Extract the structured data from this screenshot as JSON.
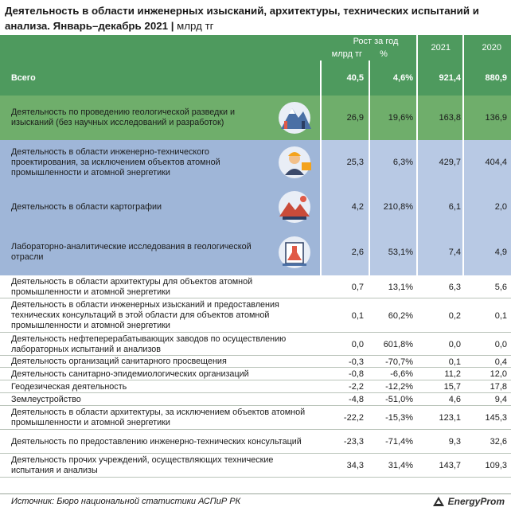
{
  "header": {
    "title": "Деятельность в области инженерных изысканий, архитектуры, технических испытаний и анализа. Январь–декабрь 2021",
    "unit": "млрд тг"
  },
  "columns": {
    "growth_group": "Рост за год",
    "growth_abs": "млрд тг",
    "growth_pct": "%",
    "y2021": "2021",
    "y2020": "2020"
  },
  "colors": {
    "header_bg": "#4e9a5e",
    "total_bg": "#4e9a5e",
    "featured_green": "#6fae6b",
    "featured_blue": "#9fb6d8",
    "featured_blue_light": "#b8c9e4"
  },
  "chart_data": {
    "type": "table",
    "columns": [
      "Рост за год, млрд тг",
      "Рост за год, %",
      "2021",
      "2020"
    ],
    "rows": [
      {
        "label": "Всего",
        "abs": "40,5",
        "pct": "4,6%",
        "y2021": "921,4",
        "y2020": "880,9",
        "style": "total"
      },
      {
        "label": "Деятельность по проведению геологической разведки и изысканий (без научных исследований и разработок)",
        "abs": "26,9",
        "pct": "19,6%",
        "y2021": "163,8",
        "y2020": "136,9",
        "style": "green",
        "icon": "geology-icon"
      },
      {
        "label": "Деятельность в области инженерно-технического проектирования, за исключением объектов атомной промышленности и атомной энергетики",
        "abs": "25,3",
        "pct": "6,3%",
        "y2021": "429,7",
        "y2020": "404,4",
        "style": "blue",
        "icon": "engineer-icon"
      },
      {
        "label": "Деятельность в области картографии",
        "abs": "4,2",
        "pct": "210,8%",
        "y2021": "6,1",
        "y2020": "2,0",
        "style": "blue",
        "icon": "map-icon"
      },
      {
        "label": "Лабораторно-аналитические исследования в геологической отрасли",
        "abs": "2,6",
        "pct": "53,1%",
        "y2021": "7,4",
        "y2020": "4,9",
        "style": "blue",
        "icon": "lab-icon"
      },
      {
        "label": "Деятельность в области архитектуры для объектов атомной промышленности и атомной энергетики",
        "abs": "0,7",
        "pct": "13,1%",
        "y2021": "6,3",
        "y2020": "5,6"
      },
      {
        "label": "Деятельность в области инженерных изысканий и предоставления технических консультаций в этой области для объектов атомной промышленности и атомной энергетики",
        "abs": "0,1",
        "pct": "60,2%",
        "y2021": "0,2",
        "y2020": "0,1"
      },
      {
        "label": "Деятельность нефтеперерабатывающих заводов по осуществлению лабораторных испытаний и анализов",
        "abs": "0,0",
        "pct": "601,8%",
        "y2021": "0,0",
        "y2020": "0,0"
      },
      {
        "label": "Деятельность организаций санитарного просвещения",
        "abs": "-0,3",
        "pct": "-70,7%",
        "y2021": "0,1",
        "y2020": "0,4"
      },
      {
        "label": "Деятельность санитарно-эпидемиологических организаций",
        "abs": "-0,8",
        "pct": "-6,6%",
        "y2021": "11,2",
        "y2020": "12,0"
      },
      {
        "label": "Геодезическая деятельность",
        "abs": "-2,2",
        "pct": "-12,2%",
        "y2021": "15,7",
        "y2020": "17,8"
      },
      {
        "label": "Землеустройство",
        "abs": "-4,8",
        "pct": "-51,0%",
        "y2021": "4,6",
        "y2020": "9,4"
      },
      {
        "label": "Деятельность в области архитектуры, за исключением объектов атомной промышленности и атомной энергетики",
        "abs": "-22,2",
        "pct": "-15,3%",
        "y2021": "123,1",
        "y2020": "145,3"
      },
      {
        "label": "Деятельность по предоставлению инженерно-технических консультаций",
        "abs": "-23,3",
        "pct": "-71,4%",
        "y2021": "9,3",
        "y2020": "32,6"
      },
      {
        "label": "Деятельность прочих учреждений, осуществляющих технические испытания и анализы",
        "abs": "34,3",
        "pct": "31,4%",
        "y2021": "143,7",
        "y2020": "109,3"
      }
    ]
  },
  "footer": {
    "source": "Источник: Бюро национальной статистики АСПиР РК",
    "logo": "EnergyProm"
  }
}
